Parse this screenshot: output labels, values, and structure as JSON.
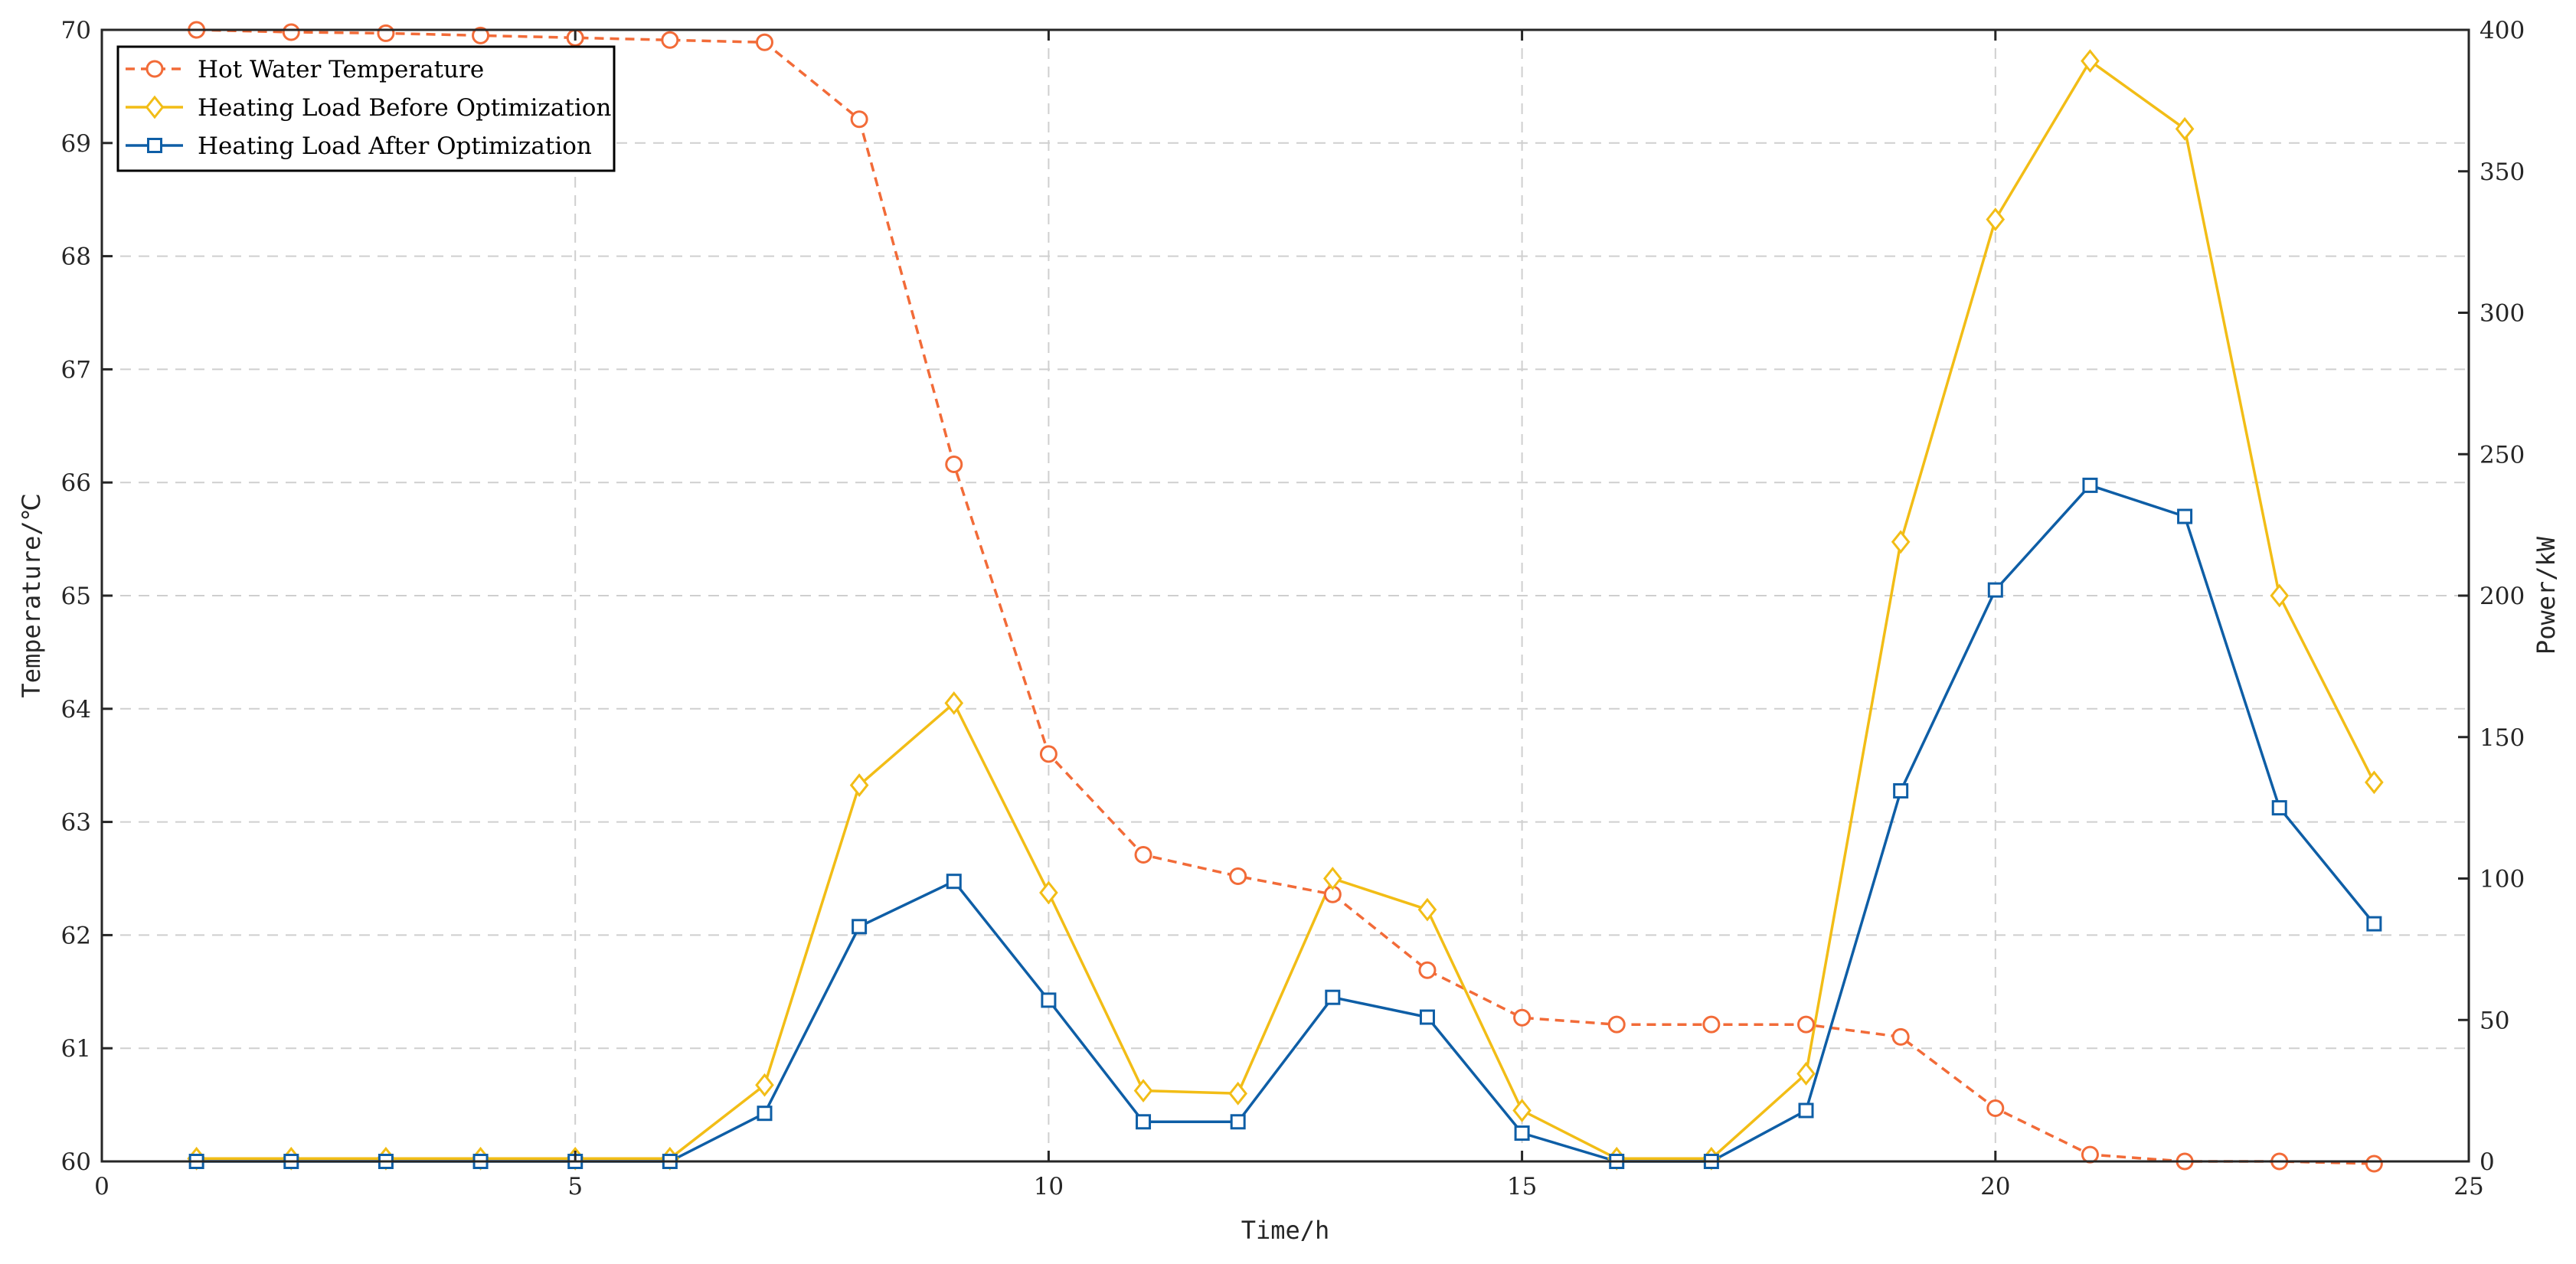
{
  "chart_data": {
    "type": "line",
    "xlabel": "Time/h",
    "ylabel_left": "Temperature/℃",
    "ylabel_right": "Power/kW",
    "xlim": [
      0,
      25
    ],
    "ylim_left": [
      60,
      70
    ],
    "ylim_right": [
      0,
      400
    ],
    "x_ticks": [
      "0",
      "5",
      "10",
      "15",
      "20",
      "25"
    ],
    "y_left_ticks": [
      "60",
      "61",
      "62",
      "63",
      "64",
      "65",
      "66",
      "67",
      "68",
      "69",
      "70"
    ],
    "y_right_ticks": [
      "0",
      "50",
      "100",
      "150",
      "200",
      "250",
      "300",
      "350",
      "400"
    ],
    "grid": true,
    "legend_position": "top-left",
    "x": [
      1,
      2,
      3,
      4,
      5,
      6,
      7,
      8,
      9,
      10,
      11,
      12,
      13,
      14,
      15,
      16,
      17,
      18,
      19,
      20,
      21,
      22,
      23,
      24
    ],
    "series": [
      {
        "name": "Hot Water Temperature",
        "axis": "left",
        "color": "#f26b38",
        "line_style": "dashed",
        "marker": "circle",
        "values": [
          70.0,
          69.98,
          69.97,
          69.95,
          69.93,
          69.91,
          69.89,
          69.21,
          66.16,
          63.6,
          62.71,
          62.52,
          62.36,
          61.69,
          61.27,
          61.21,
          61.21,
          61.21,
          61.1,
          60.47,
          60.06,
          60.0,
          60.0,
          59.98
        ]
      },
      {
        "name": "Heating Load Before Optimization",
        "axis": "right",
        "color": "#f2bd16",
        "line_style": "solid",
        "marker": "diamond",
        "values": [
          1,
          1,
          1,
          1,
          1,
          1,
          27,
          133,
          162,
          95,
          25,
          24,
          100,
          89,
          18,
          1,
          1,
          31,
          219,
          333,
          389,
          365,
          200,
          134
        ]
      },
      {
        "name": "Heating Load After Optimization",
        "axis": "right",
        "color": "#0e5ea6",
        "line_style": "solid",
        "marker": "square",
        "values": [
          0,
          0,
          0,
          0,
          0,
          0,
          17,
          83,
          99,
          57,
          14,
          14,
          58,
          51,
          10,
          0,
          0,
          18,
          131,
          202,
          239,
          228,
          125,
          84
        ]
      }
    ]
  }
}
